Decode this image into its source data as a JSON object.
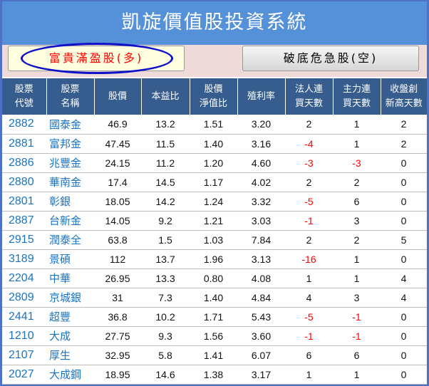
{
  "title": "凱旋價值股投資系統",
  "buttons": {
    "long": "富貴滿盈股(多)",
    "short": "破底危急股(空)"
  },
  "colors": {
    "title_bg": "#5591d8",
    "header_bg": "#365d8d",
    "code": "#1a73c2",
    "negative": "#ff0000",
    "highlight_ellipse": "#1010c8"
  },
  "table": {
    "headers": [
      [
        "股票",
        "代號"
      ],
      [
        "股票",
        "名稱"
      ],
      [
        "股價"
      ],
      [
        "本益比"
      ],
      [
        "股價",
        "淨值比"
      ],
      [
        "殖利率"
      ],
      [
        "法人連",
        "買天數"
      ],
      [
        "主力連",
        "買天數"
      ],
      [
        "收盤創",
        "新高天數"
      ]
    ],
    "rows": [
      [
        "2882",
        "國泰金",
        "46.9",
        "13.2",
        "1.51",
        "3.20",
        "2",
        "1",
        "2"
      ],
      [
        "2881",
        "富邦金",
        "47.45",
        "11.5",
        "1.40",
        "3.16",
        "-4",
        "1",
        "2"
      ],
      [
        "2886",
        "兆豐金",
        "24.15",
        "11.2",
        "1.20",
        "4.60",
        "-3",
        "-3",
        "0"
      ],
      [
        "2880",
        "華南金",
        "17.4",
        "14.5",
        "1.17",
        "4.02",
        "2",
        "2",
        "0"
      ],
      [
        "2801",
        "彰銀",
        "18.05",
        "14.2",
        "1.24",
        "3.32",
        "-5",
        "6",
        "0"
      ],
      [
        "2887",
        "台新金",
        "14.05",
        "9.2",
        "1.21",
        "3.03",
        "-1",
        "3",
        "0"
      ],
      [
        "2915",
        "潤泰全",
        "63.8",
        "1.5",
        "1.03",
        "7.84",
        "2",
        "2",
        "5"
      ],
      [
        "3189",
        "景碩",
        "112",
        "13.7",
        "1.96",
        "3.13",
        "-16",
        "1",
        "0"
      ],
      [
        "2204",
        "中華",
        "26.95",
        "13.3",
        "0.80",
        "4.08",
        "1",
        "1",
        "4"
      ],
      [
        "2809",
        "京城銀",
        "31",
        "7.3",
        "1.40",
        "4.84",
        "4",
        "3",
        "4"
      ],
      [
        "2441",
        "超豐",
        "36.8",
        "10.2",
        "1.71",
        "5.43",
        "-5",
        "-1",
        "0"
      ],
      [
        "1210",
        "大成",
        "27.75",
        "9.3",
        "1.56",
        "3.60",
        "-1",
        "-1",
        "0"
      ],
      [
        "2107",
        "厚生",
        "32.95",
        "5.8",
        "1.41",
        "6.07",
        "6",
        "6",
        "0"
      ],
      [
        "2027",
        "大成鋼",
        "18.95",
        "14.6",
        "1.38",
        "3.17",
        "1",
        "1",
        "0"
      ]
    ]
  }
}
